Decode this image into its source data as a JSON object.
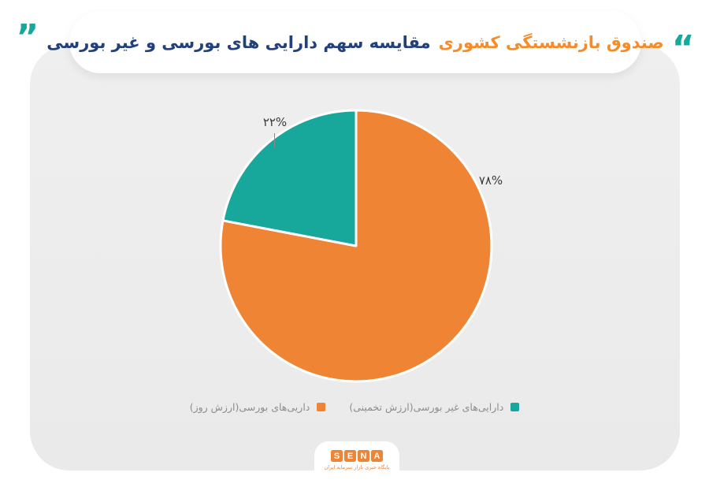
{
  "title": {
    "quote_left": "”",
    "text_primary": "مقایسه سهم دارایی های بورسی و غیر بورسی",
    "text_highlight": "صندوق بازنشستگی کشوری",
    "quote_right": "“"
  },
  "chart_data": {
    "type": "pie",
    "title": "مقایسه سهم دارایی های بورسی و غیر بورسی صندوق بازنشستگی کشوری",
    "slices": [
      {
        "label": "داریی‌های بورسی(ارزش روز)",
        "value": 78,
        "value_label": "۷۸%",
        "color": "#ee8434"
      },
      {
        "label": "دارایی‌های غیر بورسی(ارزش تخمینی)",
        "value": 22,
        "value_label": "۲۲%",
        "color": "#18a79b"
      }
    ],
    "start_angle_deg": 0,
    "direction": "clockwise",
    "legend_position": "bottom",
    "center": [
      452,
      312
    ],
    "radius": 172
  },
  "logo": {
    "letters": [
      "S",
      "E",
      "N",
      "A"
    ],
    "tagline": "پایگاه خبری بازار سرمایه ایران"
  },
  "colors": {
    "teal": "#18a79b",
    "orange": "#ee8434",
    "title_blue": "#21407c",
    "title_orange": "#f68b28",
    "card_gray": "#ececec",
    "label_dark": "#3a3a3a",
    "legend_gray": "#8d8d8d"
  }
}
